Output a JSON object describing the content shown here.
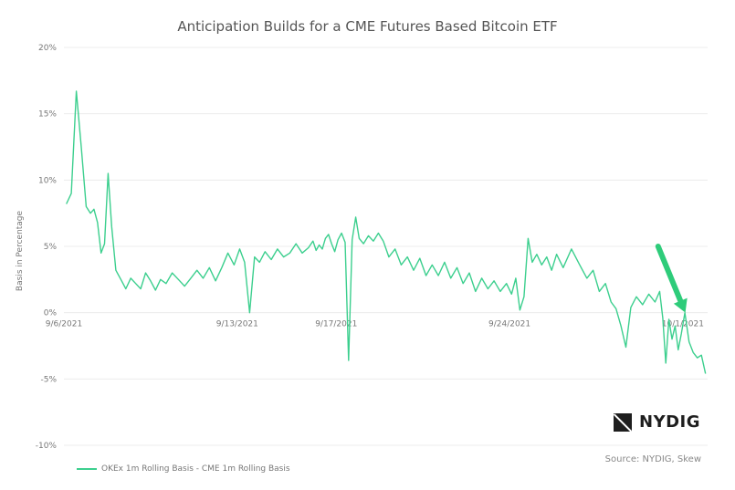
{
  "chart_data": {
    "type": "line",
    "title": "Anticipation Builds for a CME Futures Based Bitcoin ETF",
    "ylabel": "Basis in Percentage",
    "xlabel": "",
    "ylim": [
      -10,
      20
    ],
    "yticks": [
      20,
      15,
      10,
      5,
      0,
      -5,
      -10
    ],
    "ytick_labels": [
      "20%",
      "15%",
      "10%",
      "5%",
      "0%",
      "-5%",
      "-10%"
    ],
    "x_range": [
      "2021-09-06",
      "2021-10-01"
    ],
    "xticks": [
      "2021-09-06",
      "2021-09-13",
      "2021-09-17",
      "2021-09-24",
      "2021-10-01"
    ],
    "xtick_labels": [
      "9/6/2021",
      "9/13/2021",
      "9/17/2021",
      "9/24/2021",
      "10/1/2021"
    ],
    "grid": true,
    "legend_position": "bottom-left",
    "series": [
      {
        "name": "OKEx 1m Rolling Basis - CME 1m Rolling Basis",
        "color": "#3ccf8e",
        "points": [
          [
            "2021-09-06",
            8.2
          ],
          [
            "2021-09-06",
            9.0
          ],
          [
            "2021-09-06",
            16.7
          ],
          [
            "2021-09-06",
            12.5
          ],
          [
            "2021-09-06",
            8.0
          ],
          [
            "2021-09-07",
            7.5
          ],
          [
            "2021-09-07",
            7.8
          ],
          [
            "2021-09-07",
            6.8
          ],
          [
            "2021-09-07",
            4.5
          ],
          [
            "2021-09-07",
            5.2
          ],
          [
            "2021-09-07",
            10.5
          ],
          [
            "2021-09-07",
            6.5
          ],
          [
            "2021-09-08",
            3.2
          ],
          [
            "2021-09-08",
            2.5
          ],
          [
            "2021-09-08",
            1.8
          ],
          [
            "2021-09-08",
            2.6
          ],
          [
            "2021-09-08",
            2.2
          ],
          [
            "2021-09-09",
            1.8
          ],
          [
            "2021-09-09",
            3.0
          ],
          [
            "2021-09-09",
            2.4
          ],
          [
            "2021-09-09",
            1.7
          ],
          [
            "2021-09-09",
            2.5
          ],
          [
            "2021-09-10",
            2.2
          ],
          [
            "2021-09-10",
            3.0
          ],
          [
            "2021-09-10",
            2.5
          ],
          [
            "2021-09-10",
            2.0
          ],
          [
            "2021-09-11",
            2.6
          ],
          [
            "2021-09-11",
            3.2
          ],
          [
            "2021-09-11",
            2.6
          ],
          [
            "2021-09-11",
            3.4
          ],
          [
            "2021-09-12",
            2.4
          ],
          [
            "2021-09-12",
            3.4
          ],
          [
            "2021-09-12",
            4.5
          ],
          [
            "2021-09-12",
            3.6
          ],
          [
            "2021-09-13",
            4.8
          ],
          [
            "2021-09-13",
            3.8
          ],
          [
            "2021-09-13",
            0.0
          ],
          [
            "2021-09-13",
            4.2
          ],
          [
            "2021-09-13",
            3.8
          ],
          [
            "2021-09-14",
            4.6
          ],
          [
            "2021-09-14",
            4.0
          ],
          [
            "2021-09-14",
            4.8
          ],
          [
            "2021-09-14",
            4.2
          ],
          [
            "2021-09-15",
            4.5
          ],
          [
            "2021-09-15",
            5.2
          ],
          [
            "2021-09-15",
            4.5
          ],
          [
            "2021-09-15",
            4.9
          ],
          [
            "2021-09-16",
            5.4
          ],
          [
            "2021-09-16",
            4.7
          ],
          [
            "2021-09-16",
            5.1
          ],
          [
            "2021-09-16",
            4.8
          ],
          [
            "2021-09-16",
            5.6
          ],
          [
            "2021-09-16",
            5.9
          ],
          [
            "2021-09-16",
            5.2
          ],
          [
            "2021-09-16",
            4.6
          ],
          [
            "2021-09-17",
            5.5
          ],
          [
            "2021-09-17",
            6.0
          ],
          [
            "2021-09-17",
            5.3
          ],
          [
            "2021-09-17",
            -3.6
          ],
          [
            "2021-09-17",
            5.5
          ],
          [
            "2021-09-17",
            7.2
          ],
          [
            "2021-09-17",
            5.6
          ],
          [
            "2021-09-18",
            5.2
          ],
          [
            "2021-09-18",
            5.8
          ],
          [
            "2021-09-18",
            5.4
          ],
          [
            "2021-09-18",
            6.0
          ],
          [
            "2021-09-18",
            5.4
          ],
          [
            "2021-09-19",
            4.2
          ],
          [
            "2021-09-19",
            4.8
          ],
          [
            "2021-09-19",
            3.6
          ],
          [
            "2021-09-19",
            4.2
          ],
          [
            "2021-09-20",
            3.2
          ],
          [
            "2021-09-20",
            4.1
          ],
          [
            "2021-09-20",
            2.8
          ],
          [
            "2021-09-20",
            3.6
          ],
          [
            "2021-09-21",
            2.8
          ],
          [
            "2021-09-21",
            3.8
          ],
          [
            "2021-09-21",
            2.6
          ],
          [
            "2021-09-21",
            3.4
          ],
          [
            "2021-09-22",
            2.2
          ],
          [
            "2021-09-22",
            3.0
          ],
          [
            "2021-09-22",
            1.6
          ],
          [
            "2021-09-22",
            2.6
          ],
          [
            "2021-09-23",
            1.8
          ],
          [
            "2021-09-23",
            2.4
          ],
          [
            "2021-09-23",
            1.6
          ],
          [
            "2021-09-23",
            2.2
          ],
          [
            "2021-09-24",
            1.4
          ],
          [
            "2021-09-24",
            2.6
          ],
          [
            "2021-09-24",
            0.2
          ],
          [
            "2021-09-24",
            1.2
          ],
          [
            "2021-09-24",
            5.6
          ],
          [
            "2021-09-24",
            3.8
          ],
          [
            "2021-09-25",
            4.4
          ],
          [
            "2021-09-25",
            3.6
          ],
          [
            "2021-09-25",
            4.2
          ],
          [
            "2021-09-25",
            3.2
          ],
          [
            "2021-09-25",
            4.4
          ],
          [
            "2021-09-26",
            3.4
          ],
          [
            "2021-09-26",
            4.8
          ],
          [
            "2021-09-26",
            3.6
          ],
          [
            "2021-09-27",
            2.6
          ],
          [
            "2021-09-27",
            3.2
          ],
          [
            "2021-09-27",
            1.6
          ],
          [
            "2021-09-27",
            2.2
          ],
          [
            "2021-09-28",
            0.8
          ],
          [
            "2021-09-28",
            0.3
          ],
          [
            "2021-09-28",
            -1.0
          ],
          [
            "2021-09-28",
            -2.6
          ],
          [
            "2021-09-28",
            0.4
          ],
          [
            "2021-09-29",
            1.2
          ],
          [
            "2021-09-29",
            0.6
          ],
          [
            "2021-09-29",
            1.4
          ],
          [
            "2021-09-29",
            0.8
          ],
          [
            "2021-09-30",
            1.6
          ],
          [
            "2021-09-30",
            -0.4
          ],
          [
            "2021-09-30",
            -3.8
          ],
          [
            "2021-09-30",
            -0.5
          ],
          [
            "2021-09-30",
            -2.0
          ],
          [
            "2021-09-30",
            -1.0
          ],
          [
            "2021-09-30",
            -2.8
          ],
          [
            "2021-09-30",
            -1.6
          ],
          [
            "2021-10-01",
            0.0
          ],
          [
            "2021-10-01",
            -2.2
          ],
          [
            "2021-10-01",
            -3.0
          ],
          [
            "2021-10-01",
            -3.4
          ],
          [
            "2021-10-01",
            -3.2
          ],
          [
            "2021-10-01",
            -4.6
          ]
        ]
      }
    ],
    "annotations": [
      {
        "type": "arrow",
        "color": "#2ecc7a",
        "from": [
          "2021-09-30",
          5.0
        ],
        "to": [
          "2021-10-01",
          0.0
        ]
      }
    ]
  },
  "logo": {
    "text": "NYDIG"
  },
  "source": "Source: NYDIG, Skew"
}
